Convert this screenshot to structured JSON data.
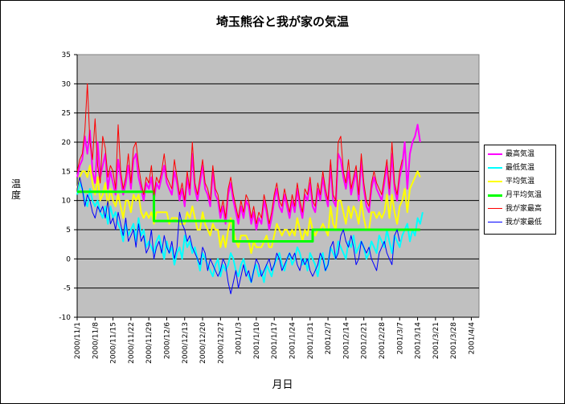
{
  "chart_data": {
    "type": "line",
    "title": "埼玉熊谷と我が家の気温",
    "xlabel": "月日",
    "ylabel": "温度",
    "ylim": [
      -10,
      35
    ],
    "yticks": [
      35,
      30,
      25,
      20,
      15,
      10,
      5,
      0,
      -5,
      -10
    ],
    "xlim": [
      "2000-11-01",
      "2001-04-07"
    ],
    "x_tick_labels": [
      "2000/11/1",
      "2000/11/8",
      "2000/11/15",
      "2000/11/22",
      "2000/11/29",
      "2000/12/6",
      "2000/12/13",
      "2000/12/20",
      "2000/12/27",
      "2001/1/3",
      "2001/1/10",
      "2001/1/17",
      "2001/1/24",
      "2001/1/31",
      "2001/2/7",
      "2001/2/14",
      "2001/2/21",
      "2001/2/28",
      "2001/3/7",
      "2001/3/14",
      "2001/3/21",
      "2001/3/28",
      "2001/4/4"
    ],
    "grid": true,
    "plot_background": "#c0c0c0",
    "legend_position": "right",
    "series": [
      {
        "name": "最高気温",
        "color": "#ff00ff",
        "width": 2,
        "start": "2000-11-01",
        "values": [
          14,
          16,
          17,
          21,
          18,
          22,
          15,
          13,
          20,
          14,
          16,
          18,
          12,
          15,
          13,
          11,
          17,
          14,
          11,
          13,
          16,
          12,
          17,
          18,
          14,
          12,
          10,
          13,
          12,
          14,
          10,
          13,
          12,
          14,
          16,
          13,
          12,
          11,
          15,
          13,
          10,
          12,
          9,
          14,
          11,
          18,
          12,
          10,
          13,
          16,
          12,
          11,
          9,
          15,
          11,
          10,
          7,
          9,
          6,
          11,
          13,
          10,
          8,
          6,
          9,
          7,
          10,
          9,
          6,
          8,
          5,
          7,
          6,
          10,
          8,
          5,
          7,
          10,
          12,
          9,
          8,
          11,
          9,
          7,
          10,
          8,
          12,
          9,
          7,
          11,
          10,
          13,
          9,
          8,
          12,
          10,
          14,
          11,
          9,
          16,
          10,
          9,
          18,
          17,
          14,
          12,
          15,
          11,
          13,
          15,
          10,
          17,
          12,
          9,
          8,
          12,
          14,
          12,
          11,
          10,
          13,
          16,
          11,
          18,
          12,
          10,
          14,
          16,
          20,
          12,
          18,
          20,
          21,
          23,
          20
        ]
      },
      {
        "name": "最低気温",
        "color": "#00ffff",
        "width": 2,
        "start": "2000-11-01",
        "values": [
          11,
          13,
          12,
          10,
          9,
          12,
          10,
          9,
          10,
          8,
          7,
          9,
          6,
          9,
          7,
          8,
          6,
          5,
          3,
          6,
          4,
          5,
          6,
          3,
          7,
          4,
          5,
          2,
          3,
          2,
          1,
          3,
          4,
          2,
          0,
          3,
          1,
          2,
          -1,
          1,
          2,
          0,
          4,
          2,
          3,
          1,
          2,
          0,
          -2,
          1,
          0,
          -1,
          -2,
          -3,
          -1,
          0,
          -3,
          -1,
          -2,
          -1,
          1,
          0,
          -2,
          -3,
          -1,
          0,
          -2,
          -3,
          -4,
          -2,
          -1,
          -3,
          -2,
          -4,
          -1,
          -2,
          -3,
          -1,
          0,
          1,
          -1,
          -2,
          0,
          1,
          -1,
          0,
          2,
          1,
          -1,
          0,
          -2,
          1,
          0,
          -1,
          -3,
          0,
          1,
          -2,
          -1,
          2,
          1,
          0,
          3,
          2,
          1,
          0,
          3,
          2,
          4,
          1,
          2,
          3,
          2,
          0,
          1,
          3,
          2,
          1,
          4,
          3,
          2,
          5,
          3,
          1,
          4,
          3,
          2,
          4,
          5,
          6,
          3,
          5,
          4,
          7,
          6,
          8
        ]
      },
      {
        "name": "平均気温",
        "color": "#ffff00",
        "width": 2,
        "start": "2000-11-01",
        "values": [
          12,
          14,
          15,
          15,
          14,
          16,
          13,
          11,
          14,
          10,
          11,
          13,
          9,
          12,
          10,
          9,
          11,
          9,
          7,
          10,
          10,
          8,
          11,
          10,
          11,
          8,
          7,
          8,
          7,
          8,
          6,
          8,
          8,
          8,
          8,
          8,
          6,
          7,
          7,
          7,
          6,
          6,
          6,
          8,
          7,
          9,
          7,
          5,
          5,
          8,
          6,
          5,
          4,
          6,
          5,
          5,
          2,
          4,
          2,
          5,
          7,
          5,
          3,
          2,
          4,
          4,
          4,
          3,
          1,
          3,
          2,
          2,
          2,
          3,
          4,
          2,
          2,
          4,
          6,
          5,
          4,
          5,
          5,
          4,
          5,
          4,
          7,
          5,
          3,
          5,
          4,
          7,
          5,
          4,
          5,
          5,
          6,
          5,
          4,
          9,
          6,
          5,
          10,
          10,
          8,
          6,
          9,
          7,
          9,
          8,
          6,
          10,
          7,
          5,
          5,
          8,
          8,
          7,
          8,
          7,
          8,
          11,
          7,
          11,
          8,
          6,
          9,
          10,
          12,
          8,
          12,
          13,
          14,
          15,
          14
        ]
      },
      {
        "name": "月平均気温",
        "color": "#00ff00",
        "width": 3,
        "step": true,
        "segments": [
          {
            "from": "2000-11-01",
            "to": "2000-12-01",
            "value": 11.5
          },
          {
            "from": "2000-12-01",
            "to": "2001-01-01",
            "value": 6.5
          },
          {
            "from": "2001-01-01",
            "to": "2001-02-01",
            "value": 3
          },
          {
            "from": "2001-02-01",
            "to": "2001-03-01",
            "value": 5
          },
          {
            "from": "2001-03-01",
            "to": "2001-03-15",
            "value": 5
          }
        ]
      },
      {
        "name": "我が家最高",
        "color": "#ff0000",
        "width": 1,
        "start": "2000-11-01",
        "values": [
          15,
          17,
          18,
          22,
          30,
          20,
          17,
          24,
          16,
          13,
          21,
          19,
          14,
          16,
          15,
          12,
          23,
          15,
          12,
          14,
          18,
          13,
          19,
          20,
          16,
          13,
          11,
          14,
          13,
          16,
          11,
          14,
          13,
          15,
          18,
          14,
          13,
          12,
          17,
          14,
          11,
          13,
          10,
          15,
          12,
          20,
          13,
          11,
          14,
          17,
          13,
          12,
          10,
          16,
          12,
          11,
          8,
          10,
          7,
          12,
          14,
          11,
          9,
          7,
          10,
          8,
          11,
          10,
          7,
          9,
          6,
          8,
          7,
          11,
          9,
          6,
          8,
          11,
          13,
          10,
          9,
          12,
          10,
          8,
          11,
          9,
          13,
          10,
          8,
          12,
          11,
          14,
          10,
          9,
          13,
          11,
          15,
          12,
          10,
          17,
          11,
          10,
          20,
          21,
          15,
          13,
          17,
          12,
          14,
          16,
          11,
          18,
          13,
          10,
          9,
          13,
          15,
          13,
          12,
          11,
          14,
          17,
          12,
          20,
          13,
          11,
          15,
          17
        ]
      },
      {
        "name": "我が家最低",
        "color": "#0000ff",
        "width": 1,
        "start": "2000-11-01",
        "values": [
          12,
          14,
          12,
          9,
          11,
          10,
          8,
          7,
          9,
          8,
          9,
          7,
          10,
          6,
          7,
          5,
          8,
          6,
          4,
          7,
          3,
          4,
          5,
          2,
          6,
          3,
          4,
          1,
          2,
          5,
          0,
          2,
          3,
          1,
          4,
          2,
          1,
          3,
          0,
          2,
          8,
          6,
          5,
          3,
          4,
          2,
          1,
          0,
          -1,
          2,
          1,
          -2,
          0,
          -1,
          -2,
          -3,
          -2,
          0,
          -1,
          -4,
          -6,
          -4,
          -2,
          -5,
          -3,
          -1,
          -3,
          -2,
          -4,
          -2,
          0,
          -1,
          -3,
          -2,
          -1,
          0,
          -2,
          -1,
          1,
          0,
          -2,
          -1,
          0,
          1,
          0,
          1,
          -1,
          -2,
          0,
          -1,
          0,
          -2,
          -3,
          -2,
          -1,
          1,
          0,
          -2,
          -1,
          2,
          3,
          0,
          1,
          4,
          5,
          3,
          2,
          4,
          2,
          -1,
          0,
          3,
          2,
          1,
          2,
          0,
          -1,
          -2,
          1,
          2,
          3,
          1,
          0,
          -1,
          4,
          5,
          3
        ]
      }
    ]
  }
}
